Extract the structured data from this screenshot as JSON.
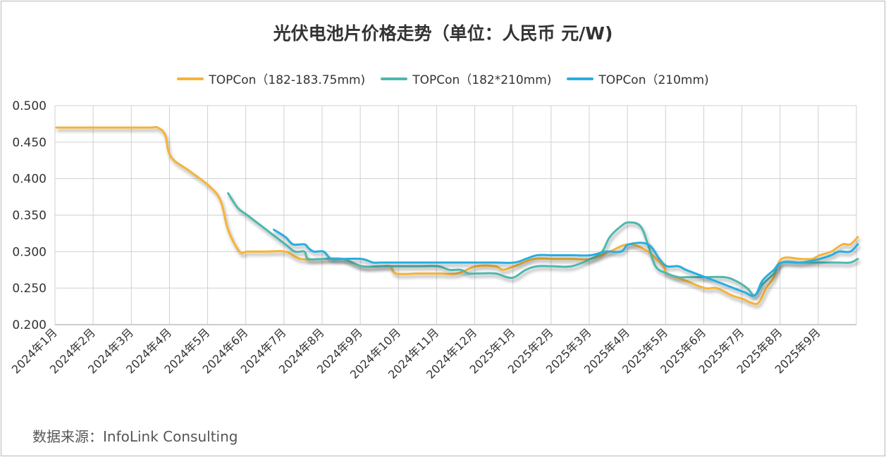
{
  "chart_data": {
    "type": "line",
    "title": "光伏电池片价格走势（单位：人民币 元/W)",
    "source": "数据来源：InfoLink Consulting",
    "x_categories": [
      "2024年1月",
      "2024年2月",
      "2024年3月",
      "2024年4月",
      "2024年5月",
      "2024年6月",
      "2024年7月",
      "2024年8月",
      "2024年9月",
      "2024年10月",
      "2024年11月",
      "2024年12月",
      "2025年1月",
      "2025年2月",
      "2025年3月",
      "2025年4月",
      "2025年5月",
      "2025年6月",
      "2025年7月",
      "2025年8月",
      "2025年9月"
    ],
    "y_ticks": [
      "0.500",
      "0.450",
      "0.400",
      "0.350",
      "0.300",
      "0.250",
      "0.200"
    ],
    "ylim": [
      0.2,
      0.5
    ],
    "grid": true,
    "legend_position": "top",
    "series": [
      {
        "name": "TOPCon（182-183.75mm)",
        "color": "#F5B335",
        "points": [
          [
            0,
            0.47
          ],
          [
            0.5,
            0.47
          ],
          [
            1,
            0.47
          ],
          [
            1.5,
            0.47
          ],
          [
            2,
            0.47
          ],
          [
            2.5,
            0.47
          ],
          [
            2.65,
            0.47
          ],
          [
            2.85,
            0.46
          ],
          [
            3.0,
            0.43
          ],
          [
            3.5,
            0.41
          ],
          [
            4.0,
            0.39
          ],
          [
            4.3,
            0.37
          ],
          [
            4.5,
            0.33
          ],
          [
            4.8,
            0.3
          ],
          [
            5,
            0.3
          ],
          [
            5.5,
            0.3
          ],
          [
            6,
            0.3
          ],
          [
            6.4,
            0.29
          ],
          [
            7,
            0.29
          ],
          [
            7.5,
            0.29
          ],
          [
            8,
            0.28
          ],
          [
            8.5,
            0.28
          ],
          [
            8.75,
            0.28
          ],
          [
            8.9,
            0.27
          ],
          [
            9.5,
            0.27
          ],
          [
            10,
            0.27
          ],
          [
            10.5,
            0.27
          ],
          [
            11,
            0.28
          ],
          [
            11.5,
            0.28
          ],
          [
            11.7,
            0.275
          ],
          [
            12,
            0.28
          ],
          [
            12.5,
            0.29
          ],
          [
            13,
            0.29
          ],
          [
            13.5,
            0.29
          ],
          [
            14,
            0.29
          ],
          [
            14.5,
            0.3
          ],
          [
            15,
            0.31
          ],
          [
            15.5,
            0.3
          ],
          [
            15.9,
            0.28
          ],
          [
            16,
            0.27
          ],
          [
            16.5,
            0.26
          ],
          [
            17,
            0.25
          ],
          [
            17.3,
            0.25
          ],
          [
            17.7,
            0.24
          ],
          [
            18,
            0.235
          ],
          [
            18.2,
            0.23
          ],
          [
            18.4,
            0.23
          ],
          [
            18.6,
            0.25
          ],
          [
            18.8,
            0.265
          ],
          [
            19,
            0.29
          ],
          [
            19.5,
            0.29
          ],
          [
            19.8,
            0.29
          ],
          [
            20,
            0.295
          ],
          [
            20.3,
            0.3
          ],
          [
            20.6,
            0.31
          ],
          [
            20.8,
            0.31
          ],
          [
            21.0,
            0.32
          ]
        ]
      },
      {
        "name": "TOPCon（182*210mm)",
        "color": "#4DB8AE",
        "points": [
          [
            4.5,
            0.38
          ],
          [
            4.75,
            0.36
          ],
          [
            5,
            0.35
          ],
          [
            5.5,
            0.33
          ],
          [
            6,
            0.31
          ],
          [
            6.25,
            0.3
          ],
          [
            6.5,
            0.3
          ],
          [
            6.6,
            0.29
          ],
          [
            7,
            0.29
          ],
          [
            7.5,
            0.29
          ],
          [
            8,
            0.28
          ],
          [
            8.5,
            0.28
          ],
          [
            9,
            0.28
          ],
          [
            9.5,
            0.28
          ],
          [
            10,
            0.28
          ],
          [
            10.3,
            0.275
          ],
          [
            10.6,
            0.275
          ],
          [
            10.8,
            0.27
          ],
          [
            11,
            0.27
          ],
          [
            11.5,
            0.27
          ],
          [
            11.8,
            0.265
          ],
          [
            12,
            0.265
          ],
          [
            12.3,
            0.275
          ],
          [
            12.6,
            0.28
          ],
          [
            13,
            0.28
          ],
          [
            13.5,
            0.28
          ],
          [
            14,
            0.29
          ],
          [
            14.3,
            0.3
          ],
          [
            14.5,
            0.32
          ],
          [
            14.8,
            0.335
          ],
          [
            15,
            0.34
          ],
          [
            15.3,
            0.335
          ],
          [
            15.5,
            0.31
          ],
          [
            15.7,
            0.28
          ],
          [
            16,
            0.27
          ],
          [
            16.3,
            0.265
          ],
          [
            16.5,
            0.265
          ],
          [
            17,
            0.265
          ],
          [
            17.5,
            0.265
          ],
          [
            17.8,
            0.26
          ],
          [
            18.1,
            0.25
          ],
          [
            18.3,
            0.24
          ],
          [
            18.5,
            0.255
          ],
          [
            18.8,
            0.27
          ],
          [
            19,
            0.285
          ],
          [
            19.5,
            0.285
          ],
          [
            20,
            0.285
          ],
          [
            20.5,
            0.285
          ],
          [
            20.8,
            0.285
          ],
          [
            21.0,
            0.29
          ]
        ]
      },
      {
        "name": "TOPCon（210mm)",
        "color": "#27AEE0",
        "points": [
          [
            5.7,
            0.33
          ],
          [
            6,
            0.32
          ],
          [
            6.2,
            0.31
          ],
          [
            6.5,
            0.31
          ],
          [
            6.6,
            0.305
          ],
          [
            6.75,
            0.3
          ],
          [
            7,
            0.3
          ],
          [
            7.2,
            0.29
          ],
          [
            7.5,
            0.29
          ],
          [
            8,
            0.29
          ],
          [
            8.3,
            0.285
          ],
          [
            8.5,
            0.285
          ],
          [
            9,
            0.285
          ],
          [
            9.5,
            0.285
          ],
          [
            10,
            0.285
          ],
          [
            10.5,
            0.285
          ],
          [
            11,
            0.285
          ],
          [
            11.5,
            0.285
          ],
          [
            12,
            0.285
          ],
          [
            12.3,
            0.29
          ],
          [
            12.6,
            0.295
          ],
          [
            13,
            0.295
          ],
          [
            13.5,
            0.295
          ],
          [
            14,
            0.295
          ],
          [
            14.4,
            0.3
          ],
          [
            14.8,
            0.3
          ],
          [
            15,
            0.31
          ],
          [
            15.5,
            0.31
          ],
          [
            15.8,
            0.29
          ],
          [
            16,
            0.28
          ],
          [
            16.3,
            0.28
          ],
          [
            16.5,
            0.275
          ],
          [
            17,
            0.265
          ],
          [
            17.5,
            0.255
          ],
          [
            18,
            0.245
          ],
          [
            18.3,
            0.24
          ],
          [
            18.5,
            0.26
          ],
          [
            18.8,
            0.275
          ],
          [
            19,
            0.285
          ],
          [
            19.5,
            0.285
          ],
          [
            20,
            0.29
          ],
          [
            20.3,
            0.295
          ],
          [
            20.5,
            0.3
          ],
          [
            20.8,
            0.3
          ],
          [
            21.0,
            0.31
          ]
        ]
      }
    ]
  }
}
